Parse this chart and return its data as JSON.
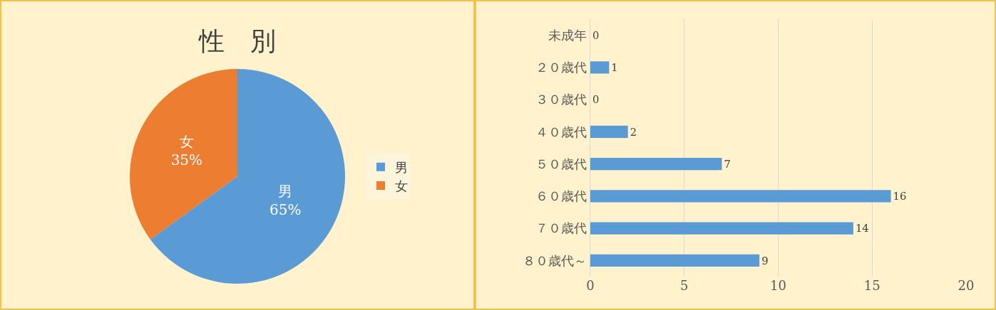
{
  "chart_data": [
    {
      "type": "pie",
      "title": "性　別",
      "categories": [
        "男",
        "女"
      ],
      "values": [
        65,
        35
      ],
      "colors": [
        "#5b9bd5",
        "#ed7d31"
      ],
      "legend": "right",
      "value_labels": [
        "65%",
        "35%"
      ]
    },
    {
      "type": "bar",
      "orientation": "horizontal",
      "categories": [
        "未成年",
        "２０歳代",
        "３０歳代",
        "４０歳代",
        "５０歳代",
        "６０歳代",
        "７０歳代",
        "８０歳代～"
      ],
      "values": [
        0,
        1,
        0,
        2,
        7,
        16,
        14,
        9
      ],
      "color": "#5b9bd5",
      "xlim": [
        0,
        20
      ],
      "xticks": [
        0,
        5,
        10,
        15,
        20
      ],
      "grid": "x",
      "data_labels": true,
      "legend": false
    }
  ]
}
